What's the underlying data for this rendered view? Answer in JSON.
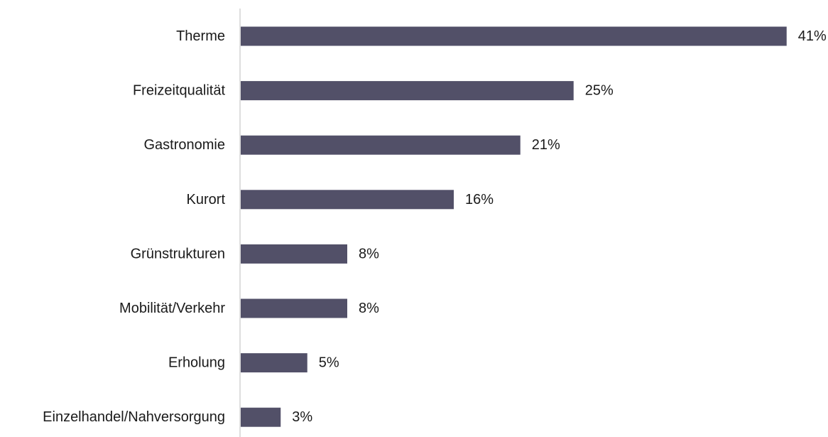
{
  "chart_data": {
    "type": "bar",
    "orientation": "horizontal",
    "categories": [
      "Therme",
      "Freizeitqualität",
      "Gastronomie",
      "Kurort",
      "Grünstrukturen",
      "Mobilität/Verkehr",
      "Erholung",
      "Einzelhandel/Nahversorgung"
    ],
    "values": [
      41,
      25,
      21,
      16,
      8,
      8,
      5,
      3
    ],
    "value_labels": [
      "41%",
      "25%",
      "21%",
      "16%",
      "8%",
      "8%",
      "5%",
      "3%"
    ],
    "unit": "%",
    "title": "",
    "xlabel": "",
    "ylabel": "",
    "grid": false,
    "legend": "none",
    "colors": {
      "bar": "#525068",
      "axis": "#d4d4d4",
      "text": "#1a1a1a"
    }
  }
}
